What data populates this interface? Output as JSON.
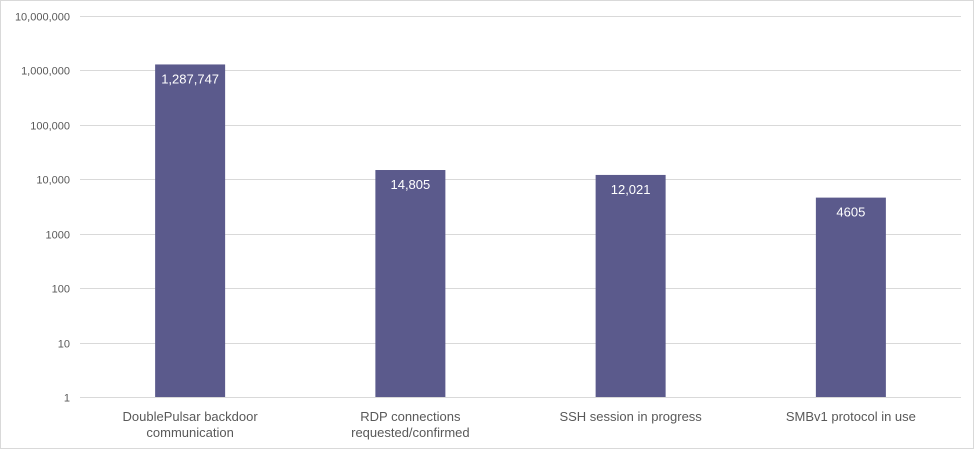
{
  "chart_data": {
    "type": "bar",
    "title": "",
    "xlabel": "",
    "ylabel": "",
    "y_scale": "log",
    "ylim": [
      1,
      10000000
    ],
    "y_ticks": [
      1,
      10,
      100,
      1000,
      10000,
      100000,
      1000000,
      10000000
    ],
    "y_tick_labels": [
      "1",
      "10",
      "100",
      "1000",
      "10,000",
      "100,000",
      "1,000,000",
      "10,000,000"
    ],
    "grid": true,
    "legend": "none",
    "bar_color": "#5b5a8c",
    "categories": [
      [
        "DoublePulsar backdoor",
        "communication"
      ],
      [
        "RDP connections",
        "requested/confirmed"
      ],
      [
        "SSH session in progress"
      ],
      [
        "SMBv1 protocol in use"
      ]
    ],
    "values": [
      1287747,
      14805,
      12021,
      4605
    ],
    "data_labels": [
      "1,287,747",
      "14,805",
      "12,021",
      "4605"
    ]
  }
}
